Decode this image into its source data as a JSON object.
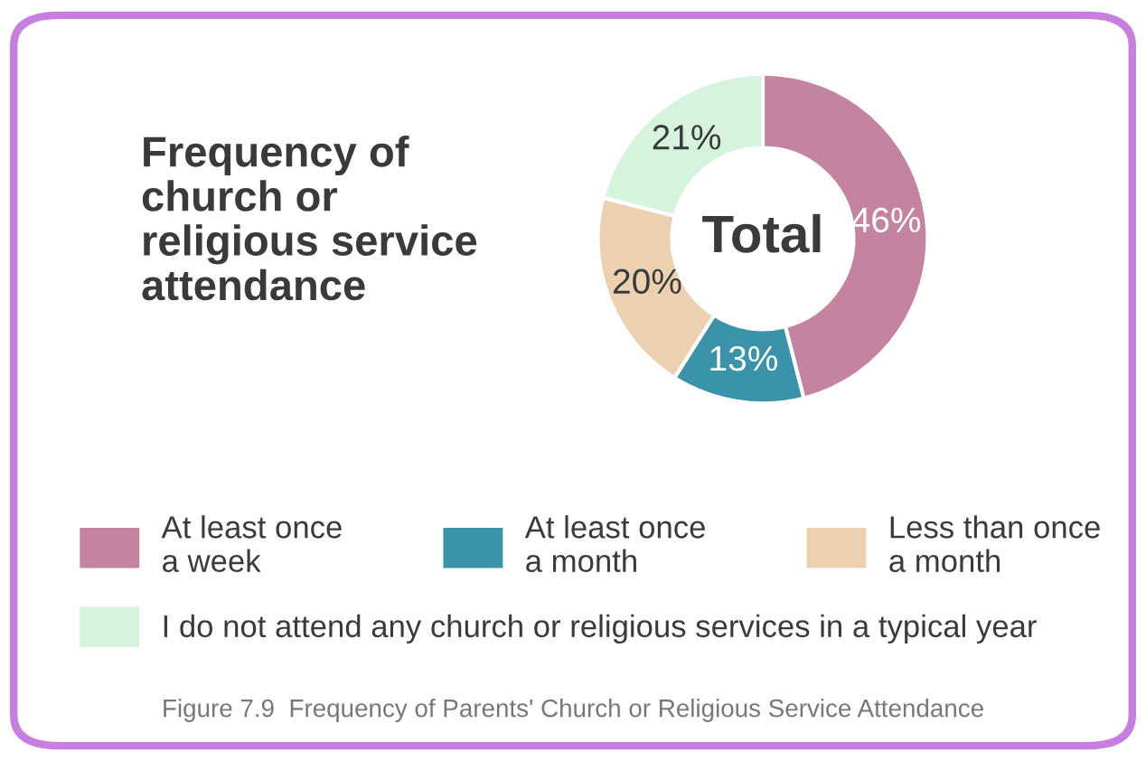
{
  "chart_data": {
    "type": "donut",
    "title": "Frequency of\nchurch or\nreligious service\nattendance",
    "categories": [
      "At least once\na week",
      "At least once\na month",
      "Less than once\na month",
      "I do not attend any church or religious services in a typical year"
    ],
    "values": [
      46,
      13,
      20,
      21
    ],
    "colors": [
      "#c4849f",
      "#3a93a8",
      "#ecd1b1",
      "#d5f3dd"
    ],
    "value_labels": [
      "46%",
      "13%",
      "20%",
      "21%"
    ],
    "legend": "bottom",
    "annotations": [
      "Total",
      "Figure 7.9  Frequency of Parents' Church or Religious Service Attendance"
    ]
  }
}
